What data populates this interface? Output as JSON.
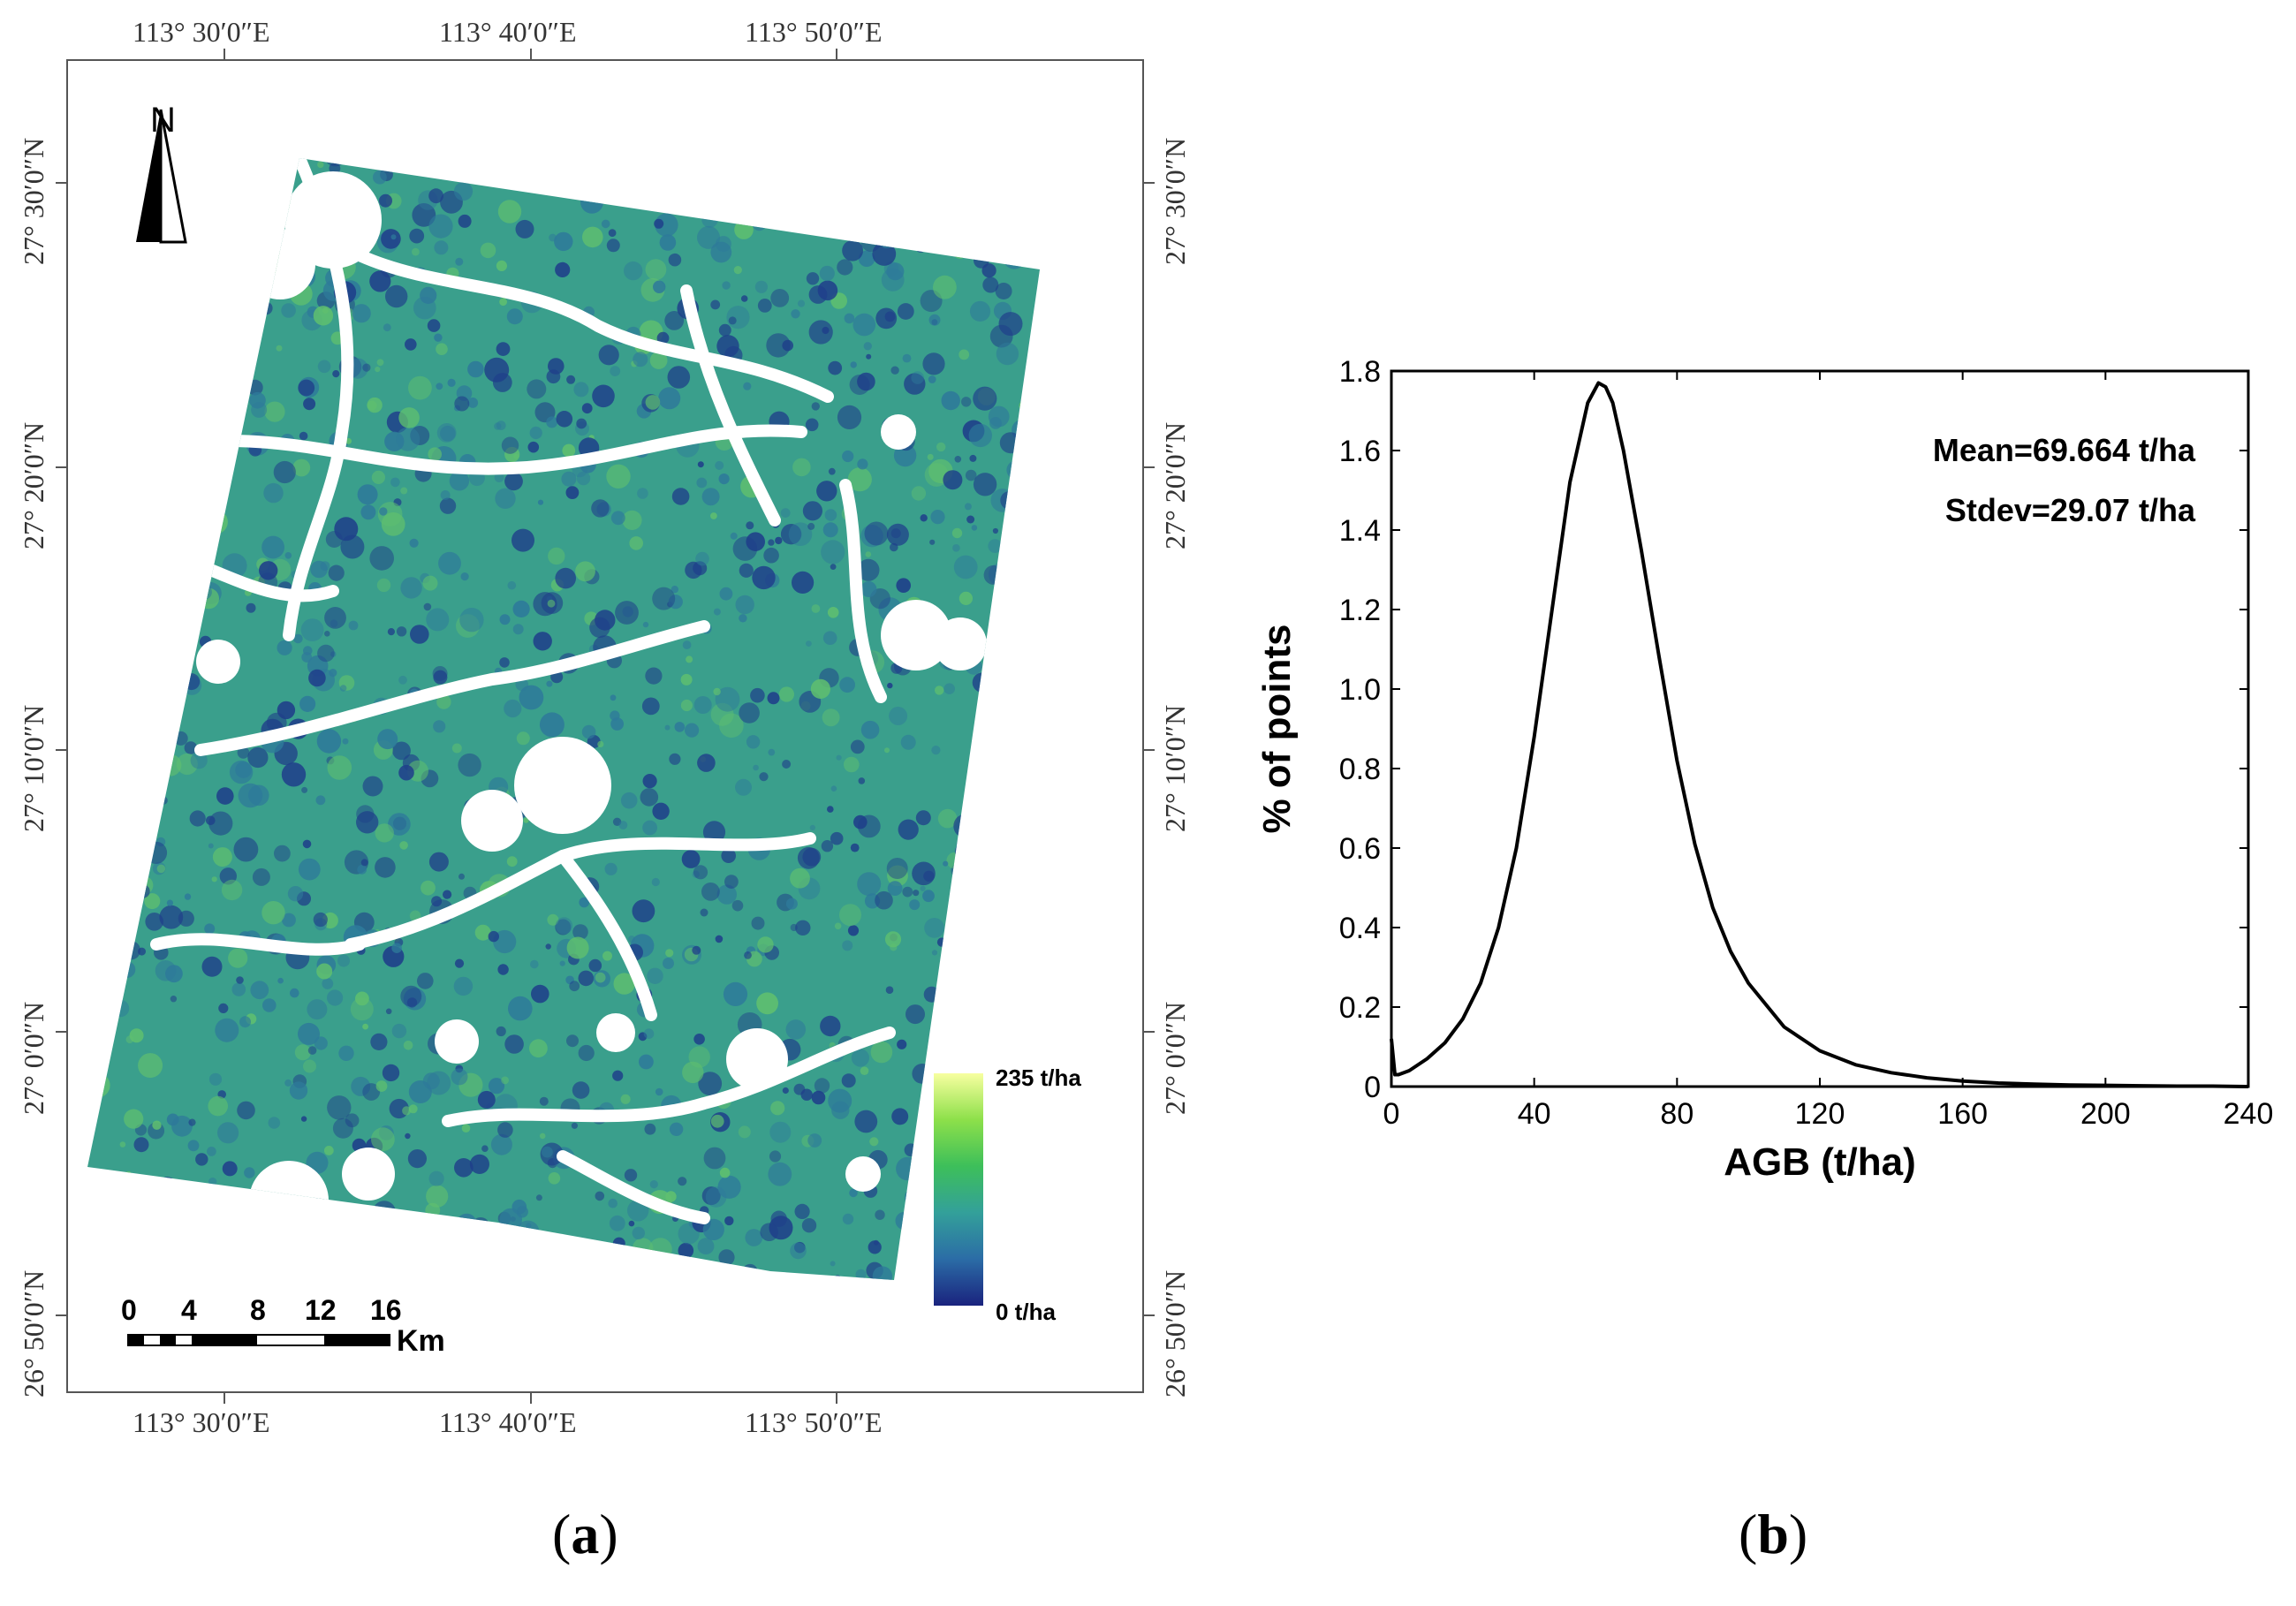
{
  "map": {
    "north_label": "N",
    "lon_labels": [
      "113° 30′0″E",
      "113° 40′0″E",
      "113° 50′0″E"
    ],
    "lat_labels": [
      "27° 30′0″N",
      "27° 20′0″N",
      "27° 10′0″N",
      "27° 0′0″N",
      "26° 50′0″N"
    ],
    "legend": {
      "max_label": "235 t/ha",
      "min_label": "0 t/ha",
      "colors": [
        "#1a237e",
        "#2b6ca6",
        "#33a09a",
        "#3dbf5a",
        "#8de04a",
        "#f7ffa0"
      ]
    },
    "scale_bar": {
      "ticks": [
        "0",
        "4",
        "8",
        "12",
        "16"
      ],
      "unit": "Km"
    },
    "raster_colors": {
      "dominant": "#3a9f8c",
      "dark": "#1f3f8a",
      "mid": "#2e7a9a",
      "light": "#5fbf6f"
    }
  },
  "captions": {
    "a": "(a)",
    "a_letter": "a",
    "b": "(b)",
    "b_letter": "b"
  },
  "chart_data": {
    "type": "line",
    "xlabel": "AGB (t/ha)",
    "ylabel": "% of points",
    "xlim": [
      0,
      240
    ],
    "ylim": [
      0,
      1.8
    ],
    "xticks": [
      0,
      40,
      80,
      120,
      160,
      200,
      240
    ],
    "yticks": [
      0,
      0.2,
      0.4,
      0.6,
      0.8,
      1.0,
      1.2,
      1.4,
      1.6,
      1.8
    ],
    "ytick_labels": [
      "0",
      "0.2",
      "0.4",
      "0.6",
      "0.8",
      "1.0",
      "1.2",
      "1.4",
      "1.6",
      "1.8"
    ],
    "annotations": [
      "Mean=69.664 t/ha",
      "Stdev=29.07 t/ha"
    ],
    "series": [
      {
        "x": [
          0,
          1,
          2,
          5,
          10,
          15,
          20,
          25,
          30,
          35,
          40,
          45,
          50,
          55,
          58,
          60,
          62,
          65,
          70,
          75,
          80,
          85,
          90,
          95,
          100,
          110,
          120,
          130,
          140,
          150,
          160,
          170,
          180,
          190,
          200,
          210,
          220,
          230,
          240
        ],
        "y": [
          0.12,
          0.03,
          0.03,
          0.04,
          0.07,
          0.11,
          0.17,
          0.26,
          0.4,
          0.6,
          0.88,
          1.2,
          1.52,
          1.72,
          1.77,
          1.76,
          1.72,
          1.6,
          1.35,
          1.08,
          0.82,
          0.61,
          0.45,
          0.34,
          0.26,
          0.15,
          0.09,
          0.055,
          0.035,
          0.022,
          0.014,
          0.009,
          0.006,
          0.004,
          0.003,
          0.002,
          0.001,
          0.001,
          0.0
        ]
      }
    ]
  }
}
